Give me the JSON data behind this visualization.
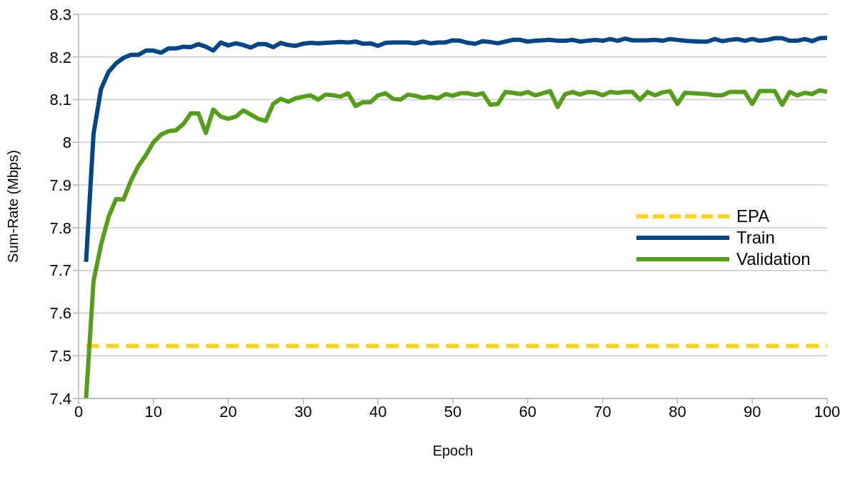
{
  "chart_data": {
    "type": "line",
    "xlabel": "Epoch",
    "ylabel": "Sum-Rate (Mbps)",
    "x": [
      1,
      2,
      3,
      4,
      5,
      6,
      7,
      8,
      9,
      10,
      11,
      12,
      13,
      14,
      15,
      16,
      17,
      18,
      19,
      20,
      21,
      22,
      23,
      24,
      25,
      26,
      27,
      28,
      29,
      30,
      31,
      32,
      33,
      34,
      35,
      36,
      37,
      38,
      39,
      40,
      41,
      42,
      43,
      44,
      45,
      46,
      47,
      48,
      49,
      50,
      51,
      52,
      53,
      54,
      55,
      56,
      57,
      58,
      59,
      60,
      61,
      62,
      63,
      64,
      65,
      66,
      67,
      68,
      69,
      70,
      71,
      72,
      73,
      74,
      75,
      76,
      77,
      78,
      79,
      80,
      81,
      82,
      83,
      84,
      85,
      86,
      87,
      88,
      89,
      90,
      91,
      92,
      93,
      94,
      95,
      96,
      97,
      98,
      99,
      100
    ],
    "series": [
      {
        "name": "EPA",
        "color": "#ffd320",
        "line_style": "dashed",
        "values": [
          7.523,
          7.523,
          7.523,
          7.523,
          7.523,
          7.523,
          7.523,
          7.523,
          7.523,
          7.523,
          7.523,
          7.523,
          7.523,
          7.523,
          7.523,
          7.523,
          7.523,
          7.523,
          7.523,
          7.523,
          7.523,
          7.523,
          7.523,
          7.523,
          7.523,
          7.523,
          7.523,
          7.523,
          7.523,
          7.523,
          7.523,
          7.523,
          7.523,
          7.523,
          7.523,
          7.523,
          7.523,
          7.523,
          7.523,
          7.523,
          7.523,
          7.523,
          7.523,
          7.523,
          7.523,
          7.523,
          7.523,
          7.523,
          7.523,
          7.523,
          7.523,
          7.523,
          7.523,
          7.523,
          7.523,
          7.523,
          7.523,
          7.523,
          7.523,
          7.523,
          7.523,
          7.523,
          7.523,
          7.523,
          7.523,
          7.523,
          7.523,
          7.523,
          7.523,
          7.523,
          7.523,
          7.523,
          7.523,
          7.523,
          7.523,
          7.523,
          7.523,
          7.523,
          7.523,
          7.523,
          7.523,
          7.523,
          7.523,
          7.523,
          7.523,
          7.523,
          7.523,
          7.523,
          7.523,
          7.523,
          7.523,
          7.523,
          7.523,
          7.523,
          7.523,
          7.523,
          7.523,
          7.523,
          7.523,
          7.523
        ]
      },
      {
        "name": "Train",
        "color": "#004586",
        "values": [
          7.72,
          8.02,
          8.125,
          8.165,
          8.185,
          8.198,
          8.205,
          8.205,
          8.215,
          8.215,
          8.21,
          8.22,
          8.22,
          8.224,
          8.223,
          8.23,
          8.224,
          8.215,
          8.234,
          8.227,
          8.232,
          8.228,
          8.222,
          8.23,
          8.23,
          8.223,
          8.233,
          8.228,
          8.226,
          8.231,
          8.233,
          8.232,
          8.233,
          8.234,
          8.235,
          8.234,
          8.236,
          8.231,
          8.232,
          8.226,
          8.233,
          8.234,
          8.234,
          8.234,
          8.232,
          8.236,
          8.232,
          8.234,
          8.234,
          8.239,
          8.238,
          8.233,
          8.231,
          8.237,
          8.235,
          8.232,
          8.236,
          8.24,
          8.24,
          8.236,
          8.238,
          8.239,
          8.24,
          8.238,
          8.238,
          8.24,
          8.236,
          8.238,
          8.24,
          8.238,
          8.242,
          8.238,
          8.243,
          8.239,
          8.239,
          8.239,
          8.24,
          8.238,
          8.242,
          8.24,
          8.238,
          8.237,
          8.236,
          8.236,
          8.242,
          8.237,
          8.24,
          8.242,
          8.238,
          8.242,
          8.238,
          8.24,
          8.244,
          8.244,
          8.238,
          8.238,
          8.242,
          8.237,
          8.244,
          8.245
        ]
      },
      {
        "name": "Validation",
        "color": "#579d1c",
        "values": [
          7.4,
          7.675,
          7.76,
          7.825,
          7.867,
          7.866,
          7.91,
          7.945,
          7.97,
          8.0,
          8.018,
          8.026,
          8.028,
          8.043,
          8.068,
          8.068,
          8.022,
          8.077,
          8.06,
          8.055,
          8.06,
          8.075,
          8.065,
          8.055,
          8.05,
          8.09,
          8.102,
          8.095,
          8.103,
          8.107,
          8.11,
          8.1,
          8.112,
          8.11,
          8.107,
          8.115,
          8.085,
          8.094,
          8.094,
          8.11,
          8.115,
          8.102,
          8.1,
          8.112,
          8.109,
          8.104,
          8.107,
          8.103,
          8.113,
          8.109,
          8.115,
          8.115,
          8.111,
          8.115,
          8.088,
          8.09,
          8.118,
          8.116,
          8.113,
          8.118,
          8.11,
          8.115,
          8.12,
          8.083,
          8.113,
          8.118,
          8.112,
          8.118,
          8.117,
          8.11,
          8.118,
          8.116,
          8.118,
          8.118,
          8.1,
          8.118,
          8.11,
          8.117,
          8.12,
          8.09,
          8.116,
          8.115,
          8.114,
          8.113,
          8.11,
          8.11,
          8.118,
          8.118,
          8.118,
          8.09,
          8.12,
          8.12,
          8.12,
          8.088,
          8.118,
          8.11,
          8.116,
          8.113,
          8.122,
          8.118
        ]
      }
    ],
    "xlim": [
      0,
      100
    ],
    "xticks": [
      0,
      10,
      20,
      30,
      40,
      50,
      60,
      70,
      80,
      90,
      100
    ],
    "ylim": [
      7.4,
      8.3
    ],
    "yticks": [
      7.4,
      7.5,
      7.6,
      7.7,
      7.8,
      7.9,
      8,
      8.1,
      8.2,
      8.3
    ],
    "grid": "y",
    "legend": "right",
    "marker": "none"
  }
}
